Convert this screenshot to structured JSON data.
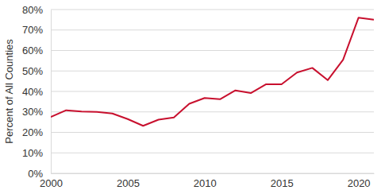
{
  "chart_data": {
    "type": "line",
    "y_label": "Percent of All Counties",
    "x": [
      2000,
      2001,
      2002,
      2003,
      2004,
      2005,
      2006,
      2007,
      2008,
      2009,
      2010,
      2011,
      2012,
      2013,
      2014,
      2015,
      2016,
      2017,
      2018,
      2019,
      2020,
      2021
    ],
    "values": [
      27.5,
      30.8,
      30.2,
      30.0,
      29.2,
      26.5,
      23.2,
      26.2,
      27.3,
      34.0,
      36.8,
      36.2,
      40.5,
      39.2,
      43.5,
      43.5,
      49.2,
      51.5,
      45.5,
      55.5,
      76.0,
      75.0
    ],
    "color": "#c8102e",
    "xlim": [
      2000,
      2021
    ],
    "xticks": [
      2000,
      2005,
      2010,
      2015,
      2020
    ],
    "ylim": [
      0,
      80
    ],
    "yticks": [
      {
        "value": 0,
        "label": "0%"
      },
      {
        "value": 10,
        "label": "10%"
      },
      {
        "value": 20,
        "label": "20%"
      },
      {
        "value": 30,
        "label": "30%"
      },
      {
        "value": 40,
        "label": "40%"
      },
      {
        "value": 50,
        "label": "50%"
      },
      {
        "value": 60,
        "label": "60%"
      },
      {
        "value": 70,
        "label": "70%"
      },
      {
        "value": 80,
        "label": "80%"
      }
    ],
    "grid": true
  }
}
